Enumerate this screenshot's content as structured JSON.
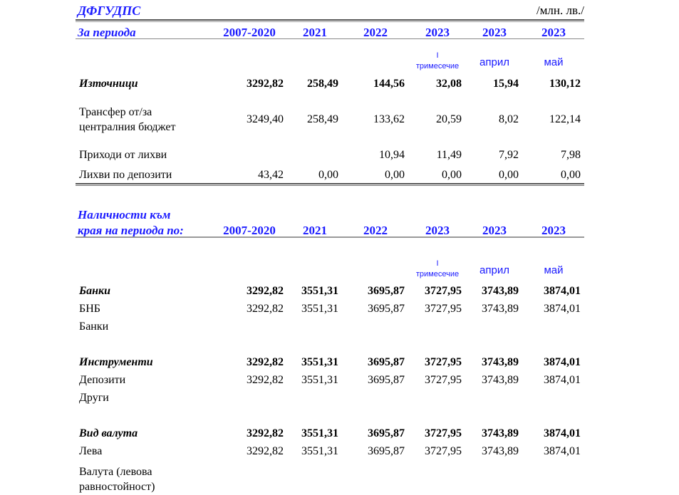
{
  "title": "ДФГУДПС",
  "unit": "/млн. лв./",
  "section1": {
    "label": "За периода",
    "columns": [
      "2007-2020",
      "2021",
      "2022",
      "2023",
      "2023",
      "2023"
    ],
    "subcolumns": {
      "q_top": "I",
      "q_bottom": "тримесечие",
      "april": "април",
      "may": "май"
    },
    "rows": [
      {
        "label": [
          "Източници"
        ],
        "bold": true,
        "values": [
          "3292,82",
          "258,49",
          "144,56",
          "32,08",
          "15,94",
          "130,12"
        ]
      },
      {
        "label": [
          "Трансфер от/за",
          "централния бюджет"
        ],
        "bold": false,
        "values": [
          "3249,40",
          "258,49",
          "133,62",
          "20,59",
          "8,02",
          "122,14"
        ]
      },
      {
        "label": [
          "Приходи от лихви"
        ],
        "bold": false,
        "values": [
          "",
          "",
          "10,94",
          "11,49",
          "7,92",
          "7,98"
        ]
      },
      {
        "label": [
          "Лихви по депозити"
        ],
        "bold": false,
        "values": [
          "43,42",
          "0,00",
          "0,00",
          "0,00",
          "0,00",
          "0,00"
        ]
      }
    ]
  },
  "section2": {
    "label": [
      "Наличности към",
      "края на периода по:"
    ],
    "columns": [
      "2007-2020",
      "2021",
      "2022",
      "2023",
      "2023",
      "2023"
    ],
    "subcolumns": {
      "q_top": "I",
      "q_bottom": "тримесечие",
      "april": "април",
      "may": "май"
    },
    "rows": [
      {
        "label": [
          "Банки"
        ],
        "bold": true,
        "values": [
          "3292,82",
          "3551,31",
          "3695,87",
          "3727,95",
          "3743,89",
          "3874,01"
        ]
      },
      {
        "label": [
          "БНБ"
        ],
        "bold": false,
        "values": [
          "3292,82",
          "3551,31",
          "3695,87",
          "3727,95",
          "3743,89",
          "3874,01"
        ]
      },
      {
        "label": [
          "Банки"
        ],
        "bold": false,
        "values": [
          "",
          "",
          "",
          "",
          "",
          ""
        ]
      },
      {
        "label": [
          "Инструменти"
        ],
        "bold": true,
        "values": [
          "3292,82",
          "3551,31",
          "3695,87",
          "3727,95",
          "3743,89",
          "3874,01"
        ]
      },
      {
        "label": [
          "Депозити"
        ],
        "bold": false,
        "values": [
          "3292,82",
          "3551,31",
          "3695,87",
          "3727,95",
          "3743,89",
          "3874,01"
        ]
      },
      {
        "label": [
          "Други"
        ],
        "bold": false,
        "values": [
          "",
          "",
          "",
          "",
          "",
          ""
        ]
      },
      {
        "label": [
          "Вид валута"
        ],
        "bold": true,
        "values": [
          "3292,82",
          "3551,31",
          "3695,87",
          "3727,95",
          "3743,89",
          "3874,01"
        ]
      },
      {
        "label": [
          "Лева"
        ],
        "bold": false,
        "values": [
          "3292,82",
          "3551,31",
          "3695,87",
          "3727,95",
          "3743,89",
          "3874,01"
        ]
      },
      {
        "label": [
          "Валута (левова",
          "равностойност)"
        ],
        "bold": false,
        "values": [
          "",
          "",
          "",
          "",
          "",
          ""
        ]
      }
    ]
  }
}
